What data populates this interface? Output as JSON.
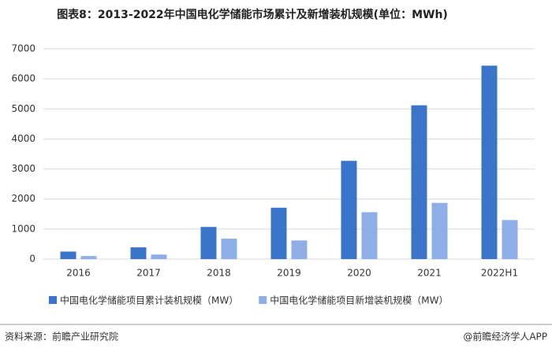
{
  "chart_data": {
    "type": "bar",
    "title": "图表8：2013-2022年中国电化学储能市场累计及新增装机规模(单位：MWh)",
    "categories": [
      "2016",
      "2017",
      "2018",
      "2019",
      "2020",
      "2021",
      "2022H1"
    ],
    "series": [
      {
        "name": "中国电化学储能项目累计装机规模（MW）",
        "color": "#3a75c9",
        "values": [
          250,
          390,
          1070,
          1710,
          3270,
          5120,
          6440
        ]
      },
      {
        "name": "中国电化学储能项目新增装机规模（MW）",
        "color": "#8eaee8",
        "values": [
          100,
          150,
          680,
          620,
          1560,
          1870,
          1300
        ]
      }
    ],
    "ylim": [
      0,
      7000
    ],
    "yticks": [
      0,
      1000,
      2000,
      3000,
      4000,
      5000,
      6000,
      7000
    ],
    "grid": true,
    "legend": "bottom",
    "source": "资料来源：前瞻产业研究院",
    "credit": "@前瞻经济学人APP"
  }
}
